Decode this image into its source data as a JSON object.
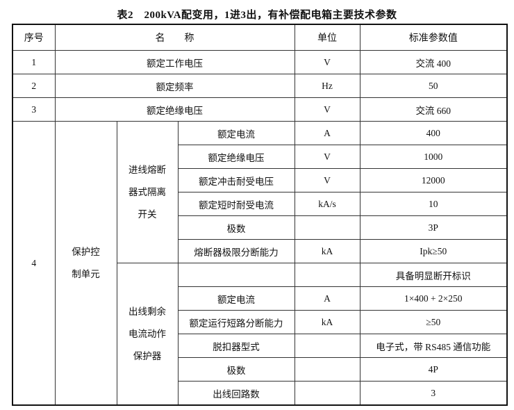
{
  "title": "表2　200kVA配变用，1进3出，有补偿配电箱主要技术参数",
  "headers": {
    "no": "序号",
    "name": "名　　称",
    "unit": "单位",
    "value": "标准参数值"
  },
  "rows": [
    {
      "no": "1",
      "name": "额定工作电压",
      "unit": "V",
      "value": "交流 400"
    },
    {
      "no": "2",
      "name": "额定频率",
      "unit": "Hz",
      "value": "50"
    },
    {
      "no": "3",
      "name": "额定绝缘电压",
      "unit": "V",
      "value": "交流 660"
    }
  ],
  "row4": {
    "no": "4",
    "group": "保护控\n制单元",
    "sections": [
      {
        "name": "进线熔断\n器式隔离\n开关",
        "items": [
          {
            "name": "额定电流",
            "unit": "A",
            "value": "400"
          },
          {
            "name": "额定绝缘电压",
            "unit": "V",
            "value": "1000"
          },
          {
            "name": "额定冲击耐受电压",
            "unit": "V",
            "value": "12000"
          },
          {
            "name": "额定短时耐受电流",
            "unit": "kA/s",
            "value": "10"
          },
          {
            "name": "极数",
            "unit": "",
            "value": "3P"
          },
          {
            "name": "熔断器极限分断能力",
            "unit": "kA",
            "value": "Ipk≥50"
          }
        ]
      },
      {
        "name": "出线剩余\n电流动作\n保护器",
        "items": [
          {
            "name": "",
            "unit": "",
            "value": "具备明显断开标识"
          },
          {
            "name": "额定电流",
            "unit": "A",
            "value": "1×400 + 2×250"
          },
          {
            "name": "额定运行短路分断能力",
            "unit": "kA",
            "value": "≥50"
          },
          {
            "name": "脱扣器型式",
            "unit": "",
            "value": "电子式，带 RS485 通信功能"
          },
          {
            "name": "极数",
            "unit": "",
            "value": "4P"
          },
          {
            "name": "出线回路数",
            "unit": "",
            "value": "3"
          }
        ]
      }
    ]
  }
}
